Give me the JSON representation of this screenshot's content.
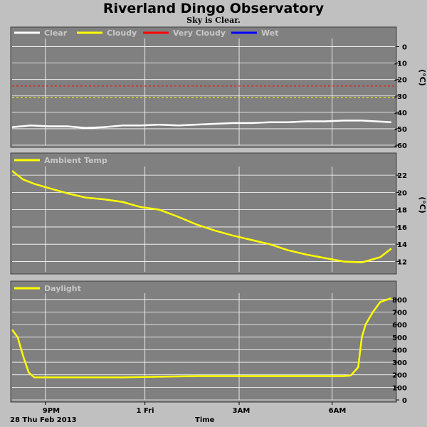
{
  "page": {
    "title": "Riverland Dingo Observatory",
    "subtitle": "Sky is Clear.",
    "date_label": "28 Thu Feb 2013",
    "x_axis_label": "Time"
  },
  "colors": {
    "background": "#c0c0c0",
    "plot_bg": "#808080",
    "grid": "#ffffff",
    "clear": "#ffffff",
    "cloudy": "#ffff00",
    "very_cloudy": "#ff0000",
    "wet": "#0000ff"
  },
  "x_ticks": [
    "9PM",
    "1 Fri",
    "3AM",
    "6AM"
  ],
  "chart_data": [
    {
      "type": "line",
      "ylabel": "(°C)",
      "ylim": [
        -60,
        5
      ],
      "yticks": [
        0,
        -10,
        -20,
        -30,
        -40,
        -50,
        -60
      ],
      "grid": true,
      "legend_position": "top-left",
      "legend": [
        "Clear",
        "Cloudy",
        "Very Cloudy",
        "Wet"
      ],
      "thresholds": [
        {
          "name": "Very Cloudy",
          "value": -24
        },
        {
          "name": "Cloudy",
          "value": -31
        }
      ],
      "series": [
        {
          "name": "Clear",
          "x": [
            0,
            0.5,
            1,
            1.5,
            2,
            2.5,
            3,
            3.5,
            4,
            4.5,
            5,
            5.5,
            6,
            6.5,
            7,
            7.5,
            8,
            8.5,
            9,
            9.5,
            10.3
          ],
          "values": [
            -49,
            -48,
            -48.5,
            -48.5,
            -49.5,
            -49,
            -48,
            -48,
            -47.5,
            -48,
            -47.5,
            -47,
            -46.5,
            -46.5,
            -46,
            -46,
            -45.5,
            -45.5,
            -45,
            -45,
            -46
          ]
        }
      ]
    },
    {
      "type": "line",
      "ylabel": "(°C)",
      "ylim": [
        10.8,
        23
      ],
      "yticks": [
        22,
        20,
        18,
        16,
        14,
        12
      ],
      "grid": true,
      "legend_position": "top-left",
      "series": [
        {
          "name": "Ambient Temp",
          "x": [
            0,
            0.3,
            0.6,
            1,
            1.5,
            2,
            2.5,
            3,
            3.5,
            4,
            4.5,
            5,
            5.5,
            6,
            6.5,
            7,
            7.5,
            8,
            8.5,
            9,
            9.5,
            10,
            10.3
          ],
          "values": [
            22.5,
            21.5,
            21,
            20.5,
            19.9,
            19.4,
            19.2,
            18.9,
            18.3,
            18,
            17.2,
            16.3,
            15.6,
            15,
            14.5,
            14,
            13.3,
            12.8,
            12.4,
            12,
            11.9,
            12.5,
            13.5
          ]
        }
      ]
    },
    {
      "type": "line",
      "ylim": [
        0,
        850
      ],
      "yticks": [
        800,
        700,
        600,
        500,
        400,
        300,
        200,
        100,
        0
      ],
      "grid": true,
      "legend_position": "top-left",
      "series": [
        {
          "name": "Daylight",
          "x": [
            0,
            0.15,
            0.3,
            0.45,
            0.6,
            1,
            2,
            3,
            4,
            5,
            6,
            7,
            8,
            9,
            9.2,
            9.4,
            9.5,
            9.6,
            9.7,
            9.8,
            10,
            10.2,
            10.3
          ],
          "values": [
            560,
            500,
            350,
            220,
            180,
            180,
            180,
            180,
            185,
            190,
            190,
            190,
            190,
            190,
            195,
            260,
            500,
            600,
            650,
            700,
            780,
            800,
            810
          ]
        }
      ]
    }
  ]
}
